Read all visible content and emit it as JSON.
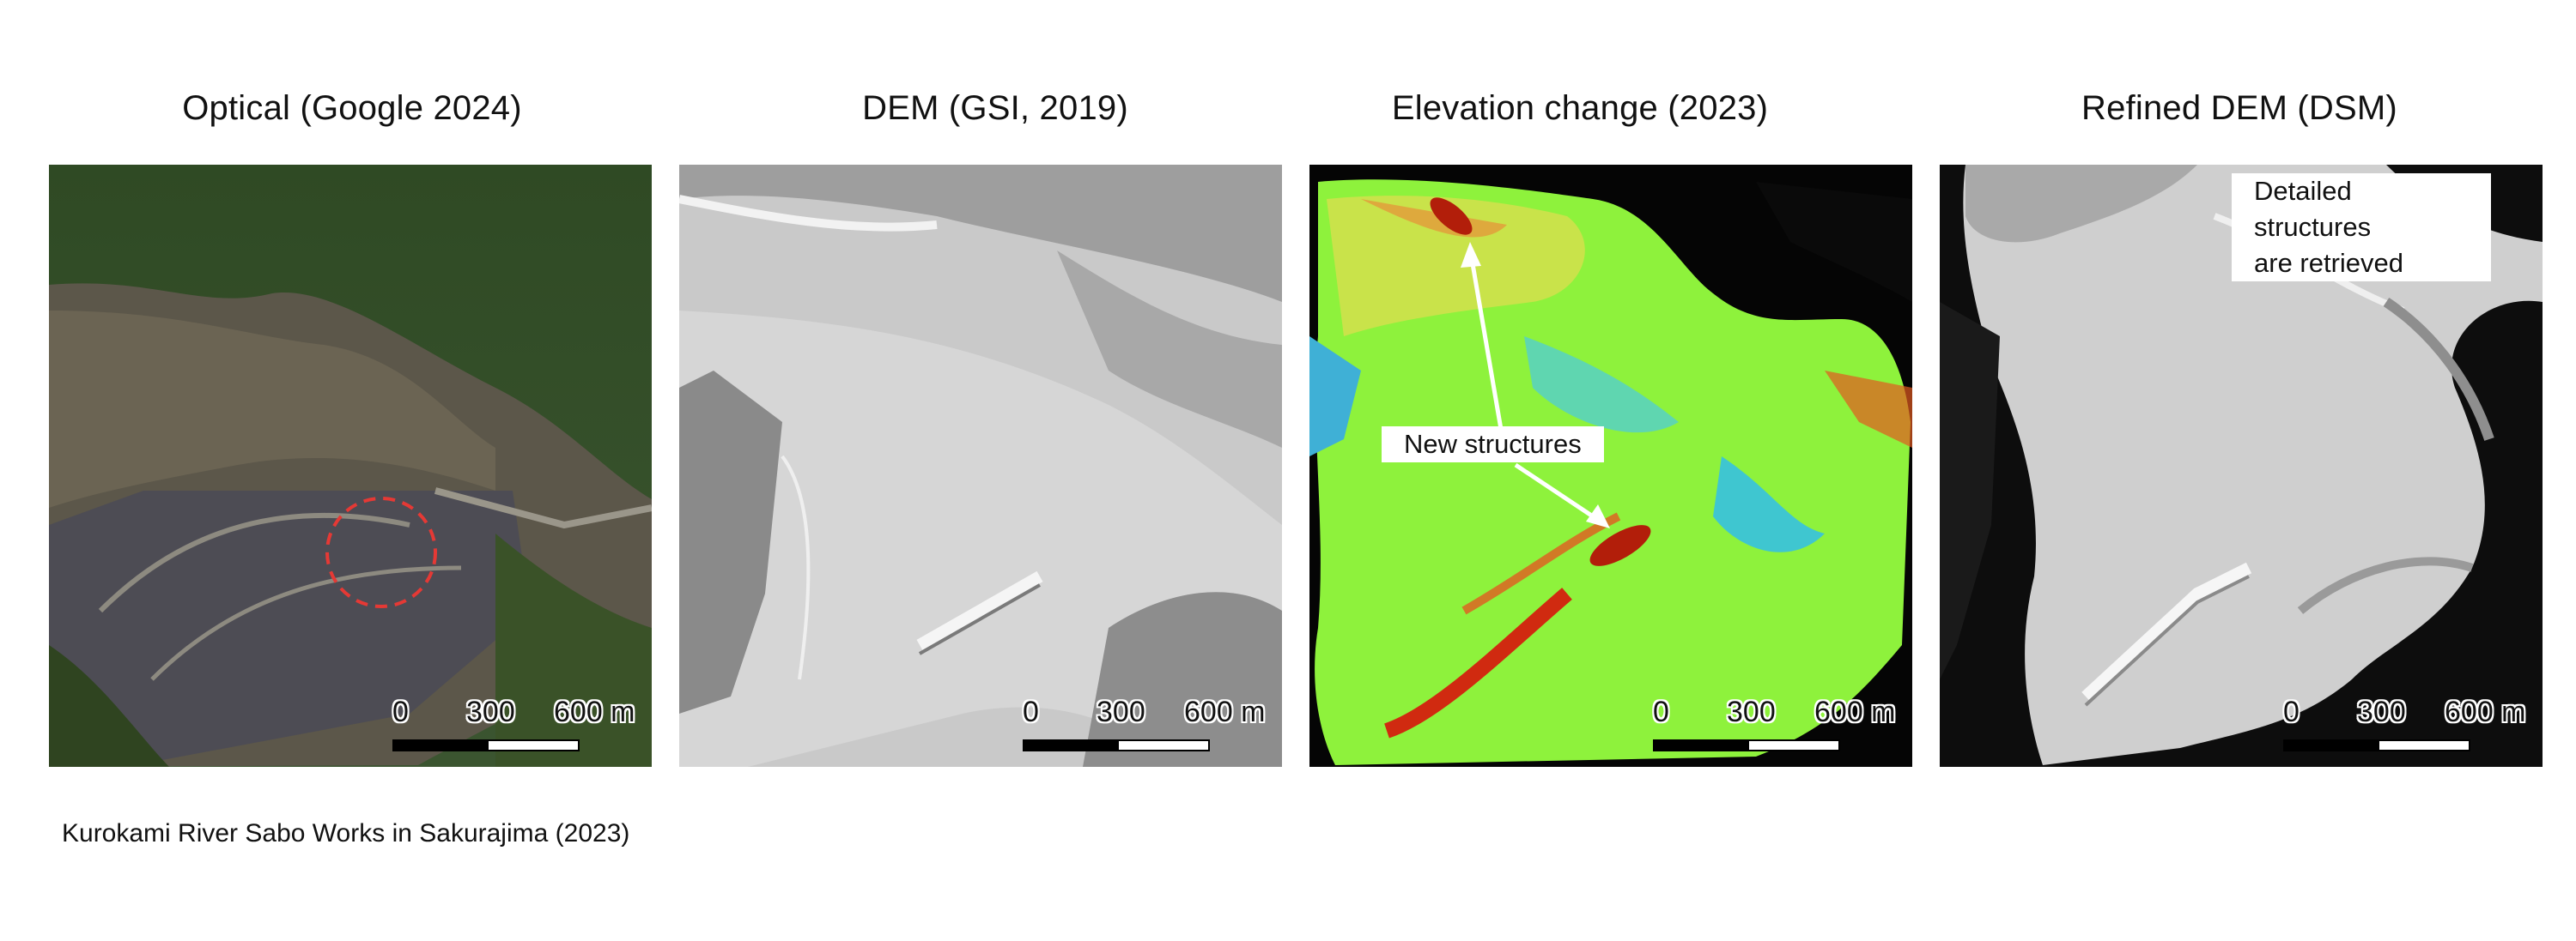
{
  "panels": [
    {
      "title": "Optical (Google 2024)",
      "scale": {
        "zero": "0",
        "mid": "300",
        "end": "600 m"
      }
    },
    {
      "title": "DEM (GSI, 2019)",
      "scale": {
        "zero": "0",
        "mid": "300",
        "end": "600 m"
      }
    },
    {
      "title": "Elevation change (2023)",
      "scale": {
        "zero": "0",
        "mid": "300",
        "end": "600 m"
      }
    },
    {
      "title": "Refined DEM (DSM)",
      "scale": {
        "zero": "0",
        "mid": "300",
        "end": "600 m"
      }
    }
  ],
  "annotations": {
    "new_structures": "New structures",
    "detailed_line1": "Detailed structures",
    "detailed_line2": "are retrieved"
  },
  "caption": "Kurokami River Sabo Works in Sakurajima (2023)",
  "colors": {
    "forest": "#2e4a22",
    "ash": "#6a6458",
    "hillshade": "#cfcfcf",
    "change_green": "#7cf23a",
    "change_red": "#b21e0a",
    "circle": "#e53935"
  }
}
